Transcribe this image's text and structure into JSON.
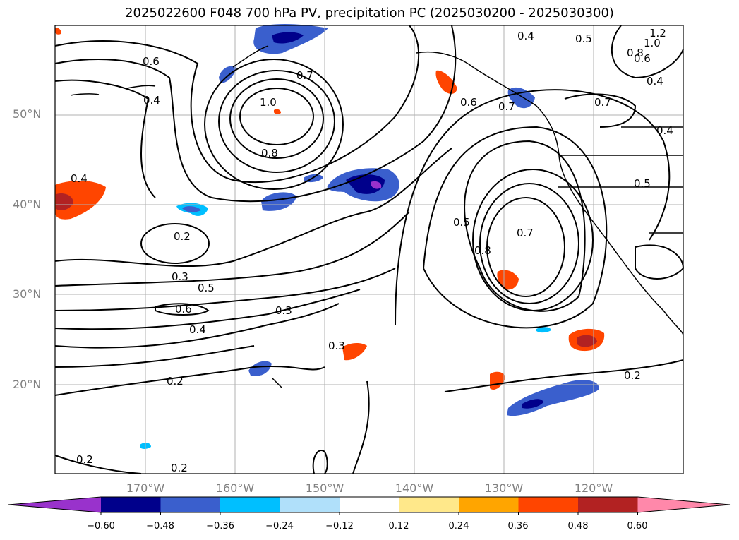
{
  "title": "2025022600 F048 700 hPa PV, precipitation PC (2025030200 - 2025030300)",
  "lat_labels": [
    "50°N",
    "40°N",
    "30°N",
    "20°N"
  ],
  "lon_labels": [
    "170°W",
    "160°W",
    "150°W",
    "140°W",
    "130°W",
    "120°W"
  ],
  "colorbar": {
    "ticks": [
      "−0.60",
      "−0.48",
      "−0.36",
      "−0.24",
      "−0.12",
      "0.12",
      "0.24",
      "0.36",
      "0.48",
      "0.60"
    ],
    "colors": [
      "#9932cc",
      "#00008b",
      "#3a5fcd",
      "#00bfff",
      "#b0e0fa",
      "#ffffff",
      "#ffe88a",
      "#ffa500",
      "#ff4500",
      "#b22222",
      "#ff88aa"
    ]
  },
  "contour_labels": [
    "0.6",
    "0.4",
    "1.0",
    "0.7",
    "0.8",
    "0.4",
    "0.5",
    "1.2",
    "1.0",
    "0.8",
    "0.6",
    "0.4",
    "0.7",
    "0.6",
    "0.7",
    "0.4",
    "0.5",
    "0.5",
    "0.8",
    "0.7",
    "0.4",
    "0.2",
    "0.3",
    "0.5",
    "0.6",
    "0.4",
    "0.3",
    "0.3",
    "0.2",
    "0.2",
    "0.2",
    "0.2"
  ],
  "colors": {
    "contour": "#000000",
    "grid": "#b0b0b0",
    "axis_label": "#808080"
  }
}
